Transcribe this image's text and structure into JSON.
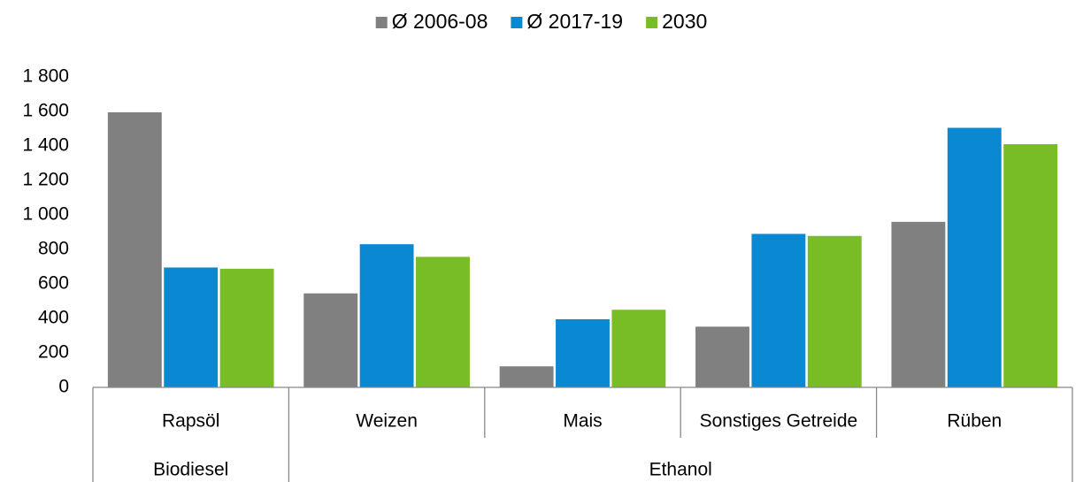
{
  "chart_data": {
    "type": "bar",
    "categories": [
      "Rapsöl",
      "Weizen",
      "Mais",
      "Sonstiges Getreide",
      "Rüben"
    ],
    "category_groups": [
      "Biodiesel",
      "Ethanol",
      "Ethanol",
      "Ethanol",
      "Ethanol"
    ],
    "series": [
      {
        "name": "Ø 2006-08",
        "color": "#808080",
        "values": [
          1595,
          545,
          122,
          352,
          960
        ]
      },
      {
        "name": "Ø 2017-19",
        "color": "#0a89d2",
        "values": [
          695,
          830,
          395,
          890,
          1505
        ]
      },
      {
        "name": "2030",
        "color": "#78bc26",
        "values": [
          688,
          757,
          450,
          878,
          1410
        ]
      }
    ],
    "ylim": [
      0,
      1800
    ],
    "yticks": [
      0,
      200,
      400,
      600,
      800,
      {
        "value": 1000,
        "label": "1 000"
      },
      {
        "value": 1200,
        "label": "1 200"
      },
      {
        "value": 1400,
        "label": "1 400"
      },
      {
        "value": 1600,
        "label": "1 600"
      },
      {
        "value": 1800,
        "label": "1 800"
      }
    ],
    "legend": "top",
    "grid": false
  }
}
